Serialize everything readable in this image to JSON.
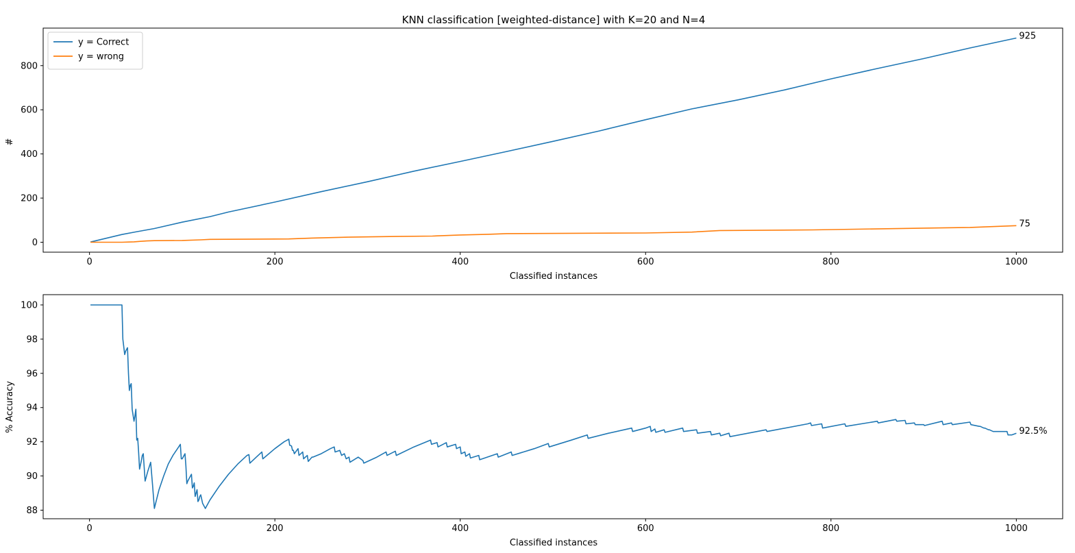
{
  "colors": {
    "correct": "#1f77b4",
    "wrong": "#ff7f0e"
  },
  "chart_data": [
    {
      "type": "line",
      "title": "KNN classification [weighted-distance] with K=20 and N=4",
      "xlabel": "Classified instances",
      "ylabel": "#",
      "xlim": [
        -50,
        1050
      ],
      "ylim": [
        -45,
        970
      ],
      "xticks": [
        0,
        200,
        400,
        600,
        800,
        1000
      ],
      "xtick_labels": [
        "0",
        "200",
        "400",
        "600",
        "800",
        "1000"
      ],
      "yticks": [
        0,
        200,
        400,
        600,
        800
      ],
      "ytick_labels": [
        "0",
        "200",
        "400",
        "600",
        "800"
      ],
      "legend": "top-left",
      "series": [
        {
          "name": "y = Correct",
          "color": "#1f77b4",
          "x": [
            1,
            35,
            50,
            70,
            100,
            130,
            150,
            200,
            250,
            300,
            350,
            400,
            450,
            500,
            550,
            600,
            650,
            700,
            750,
            800,
            850,
            900,
            950,
            1000
          ],
          "y": [
            1,
            35,
            47,
            62,
            91,
            116,
            137,
            182,
            229,
            274,
            322,
            366,
            411,
            457,
            504,
            555,
            604,
            645,
            690,
            740,
            787,
            832,
            880,
            925
          ]
        },
        {
          "name": "y = wrong",
          "color": "#ff7f0e",
          "x": [
            1,
            35,
            42,
            48,
            55,
            62,
            70,
            100,
            120,
            130,
            215,
            240,
            280,
            330,
            370,
            400,
            430,
            450,
            600,
            650,
            680,
            780,
            900,
            950,
            1000
          ],
          "y": [
            0,
            0,
            1,
            2,
            4,
            6,
            7,
            8,
            11,
            13,
            15,
            19,
            23,
            26,
            28,
            33,
            36,
            39,
            42,
            46,
            53,
            56,
            64,
            67,
            75
          ]
        }
      ],
      "annotations": [
        {
          "x": 1000,
          "y": 925,
          "text": "925"
        },
        {
          "x": 1000,
          "y": 75,
          "text": "75"
        }
      ]
    },
    {
      "type": "line",
      "title": "",
      "xlabel": "Classified instances",
      "ylabel": "% Accuracy",
      "xlim": [
        -50,
        1050
      ],
      "ylim": [
        87.5,
        100.6
      ],
      "xticks": [
        0,
        200,
        400,
        600,
        800,
        1000
      ],
      "xtick_labels": [
        "0",
        "200",
        "400",
        "600",
        "800",
        "1000"
      ],
      "yticks": [
        88,
        90,
        92,
        94,
        96,
        98,
        100
      ],
      "ytick_labels": [
        "88",
        "90",
        "92",
        "94",
        "96",
        "98",
        "100"
      ],
      "series": [
        {
          "color": "#1f77b4",
          "x": [
            1,
            34,
            35,
            36,
            38,
            39,
            41,
            42,
            43,
            44,
            45,
            46,
            48,
            49,
            50,
            51,
            52,
            53,
            54,
            56,
            57,
            58,
            60,
            63,
            66,
            68,
            70,
            75,
            80,
            85,
            90,
            95,
            98,
            99,
            100,
            101,
            102,
            103,
            104,
            105,
            106,
            108,
            110,
            111,
            112,
            113,
            114,
            115,
            116,
            117,
            118,
            119,
            120,
            122,
            125,
            127,
            130,
            140,
            150,
            160,
            170,
            172,
            173,
            180,
            186,
            187,
            200,
            210,
            215,
            216,
            218,
            219,
            220,
            221,
            225,
            226,
            230,
            231,
            235,
            236,
            240,
            241,
            250,
            260,
            264,
            265,
            270,
            272,
            275,
            277,
            280,
            281,
            290,
            295,
            296,
            310,
            320,
            321,
            330,
            331,
            350,
            368,
            369,
            375,
            376,
            385,
            386,
            395,
            396,
            400,
            401,
            405,
            406,
            410,
            411,
            420,
            421,
            440,
            441,
            455,
            456,
            480,
            495,
            496,
            520,
            537,
            538,
            560,
            585,
            586,
            600,
            605,
            606,
            610,
            611,
            620,
            621,
            640,
            641,
            655,
            656,
            670,
            671,
            680,
            681,
            690,
            691,
            730,
            731,
            775,
            778,
            779,
            790,
            791,
            815,
            816,
            850,
            851,
            870,
            871,
            880,
            881,
            890,
            891,
            900,
            901,
            920,
            921,
            930,
            931,
            950,
            951,
            960,
            961,
            965,
            966,
            970,
            971,
            975,
            976,
            990,
            991,
            995,
            1000
          ],
          "y": [
            100,
            100,
            100,
            98,
            97.1,
            97.3,
            97.5,
            96.0,
            95.0,
            95.3,
            95.4,
            93.9,
            93.2,
            93.5,
            93.9,
            92.1,
            92.2,
            91.4,
            90.4,
            90.9,
            91.2,
            91.3,
            89.7,
            90.3,
            90.8,
            89.5,
            88.1,
            89.2,
            90.0,
            90.7,
            91.2,
            91.6,
            91.85,
            91.0,
            91.0,
            91.1,
            91.2,
            91.3,
            90.6,
            89.55,
            89.7,
            89.9,
            90.1,
            89.3,
            89.4,
            89.6,
            88.8,
            89.0,
            89.2,
            88.5,
            88.6,
            88.8,
            88.9,
            88.4,
            88.1,
            88.3,
            88.6,
            89.4,
            90.1,
            90.7,
            91.2,
            91.25,
            90.75,
            91.1,
            91.4,
            91.0,
            91.6,
            92.0,
            92.15,
            91.8,
            91.75,
            91.5,
            91.5,
            91.3,
            91.6,
            91.2,
            91.4,
            91.0,
            91.2,
            90.85,
            91.1,
            91.1,
            91.3,
            91.6,
            91.7,
            91.4,
            91.5,
            91.2,
            91.3,
            91.0,
            91.1,
            90.8,
            91.1,
            90.9,
            90.75,
            91.1,
            91.4,
            91.2,
            91.45,
            91.2,
            91.7,
            92.1,
            91.85,
            91.95,
            91.7,
            91.95,
            91.7,
            91.85,
            91.6,
            91.7,
            91.3,
            91.4,
            91.15,
            91.3,
            91.05,
            91.2,
            90.95,
            91.3,
            91.1,
            91.4,
            91.2,
            91.6,
            91.9,
            91.7,
            92.1,
            92.4,
            92.2,
            92.5,
            92.8,
            92.6,
            92.8,
            92.9,
            92.6,
            92.75,
            92.55,
            92.7,
            92.55,
            92.8,
            92.6,
            92.7,
            92.5,
            92.6,
            92.4,
            92.5,
            92.35,
            92.5,
            92.3,
            92.7,
            92.6,
            93.05,
            93.1,
            92.95,
            93.05,
            92.8,
            93.05,
            92.9,
            93.2,
            93.1,
            93.3,
            93.2,
            93.25,
            93.05,
            93.1,
            93.0,
            93.0,
            92.95,
            93.2,
            93.0,
            93.1,
            93.0,
            93.15,
            93.0,
            92.9,
            92.9,
            92.8,
            92.8,
            92.7,
            92.7,
            92.6,
            92.6,
            92.6,
            92.4,
            92.4,
            92.5
          ]
        }
      ],
      "annotations": [
        {
          "x": 1000,
          "y": 92.5,
          "text": "92.5%"
        }
      ]
    }
  ]
}
